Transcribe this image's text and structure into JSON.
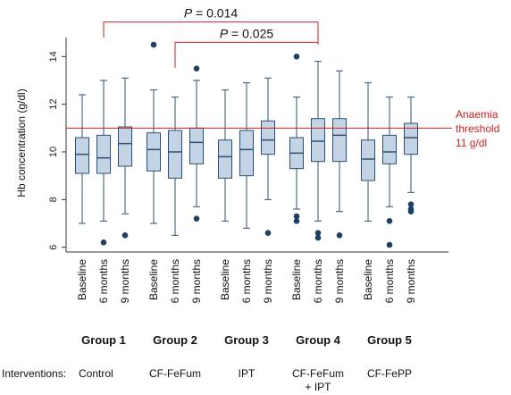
{
  "chart_data": {
    "type": "box",
    "ylabel": "Hb concentration (g/dl)",
    "ylim": [
      5.8,
      14.8
    ],
    "yticks": [
      6,
      8,
      10,
      12,
      14
    ],
    "timepoints": [
      "Baseline",
      "6 months",
      "9 months"
    ],
    "groups": [
      {
        "label": "Group 1",
        "intervention": [
          "Control"
        ],
        "boxes": [
          {
            "min": 7.0,
            "q1": 9.1,
            "median": 9.9,
            "q3": 10.6,
            "max": 12.4,
            "outliers": []
          },
          {
            "min": 7.1,
            "q1": 9.1,
            "median": 9.75,
            "q3": 10.7,
            "max": 13.0,
            "outliers": [
              6.2
            ]
          },
          {
            "min": 7.4,
            "q1": 9.4,
            "median": 10.35,
            "q3": 11.05,
            "max": 13.1,
            "outliers": [
              6.5
            ]
          }
        ]
      },
      {
        "label": "Group 2",
        "intervention": [
          "CF-FeFum"
        ],
        "boxes": [
          {
            "min": 7.0,
            "q1": 9.2,
            "median": 10.1,
            "q3": 10.8,
            "max": 12.6,
            "outliers": [
              14.5
            ]
          },
          {
            "min": 6.5,
            "q1": 8.9,
            "median": 10.0,
            "q3": 10.9,
            "max": 12.3,
            "outliers": []
          },
          {
            "min": 7.7,
            "q1": 9.5,
            "median": 10.4,
            "q3": 11.0,
            "max": 13.0,
            "outliers": [
              13.5,
              7.2
            ]
          }
        ]
      },
      {
        "label": "Group 3",
        "intervention": [
          "IPT"
        ],
        "boxes": [
          {
            "min": 7.1,
            "q1": 8.9,
            "median": 9.8,
            "q3": 10.5,
            "max": 12.6,
            "outliers": []
          },
          {
            "min": 6.8,
            "q1": 9.0,
            "median": 10.1,
            "q3": 10.9,
            "max": 12.9,
            "outliers": []
          },
          {
            "min": 8.0,
            "q1": 9.9,
            "median": 10.5,
            "q3": 11.3,
            "max": 13.1,
            "outliers": [
              6.6
            ]
          }
        ]
      },
      {
        "label": "Group 4",
        "intervention": [
          "CF-FeFum",
          "+ IPT"
        ],
        "boxes": [
          {
            "min": 7.6,
            "q1": 9.3,
            "median": 9.95,
            "q3": 10.6,
            "max": 12.3,
            "outliers": [
              14.0,
              7.3,
              7.1
            ]
          },
          {
            "min": 7.1,
            "q1": 9.6,
            "median": 10.45,
            "q3": 11.4,
            "max": 13.8,
            "outliers": [
              6.6,
              6.4
            ]
          },
          {
            "min": 7.5,
            "q1": 9.6,
            "median": 10.7,
            "q3": 11.4,
            "max": 13.4,
            "outliers": [
              6.5
            ]
          }
        ]
      },
      {
        "label": "Group 5",
        "intervention": [
          "CF-FePP"
        ],
        "boxes": [
          {
            "min": 7.1,
            "q1": 8.8,
            "median": 9.7,
            "q3": 10.5,
            "max": 12.9,
            "outliers": []
          },
          {
            "min": 7.7,
            "q1": 9.5,
            "median": 10.0,
            "q3": 10.7,
            "max": 12.3,
            "outliers": [
              7.1,
              6.1
            ]
          },
          {
            "min": 8.3,
            "q1": 9.9,
            "median": 10.6,
            "q3": 11.2,
            "max": 12.3,
            "outliers": [
              7.8,
              7.6,
              7.5
            ]
          }
        ]
      }
    ],
    "threshold": {
      "value": 11,
      "label_lines": [
        "Anaemia",
        "threshold",
        "11 g/dl"
      ],
      "color": "#cc2222"
    },
    "comparisons": [
      {
        "label": "P = 0.014",
        "from_group": 0,
        "from_box": 1,
        "to_group": 3,
        "to_box": 1,
        "level": 15.45
      },
      {
        "label": "P = 0.025",
        "from_group": 1,
        "from_box": 1,
        "to_group": 3,
        "to_box": 1,
        "level": 14.6
      }
    ],
    "interventions_prefix": "Interventions:",
    "colors": {
      "box_fill": "#c4d4e4",
      "box_stroke": "#2c4f76",
      "outlier": "#1e3f66",
      "comparison": "#cc2222"
    }
  }
}
